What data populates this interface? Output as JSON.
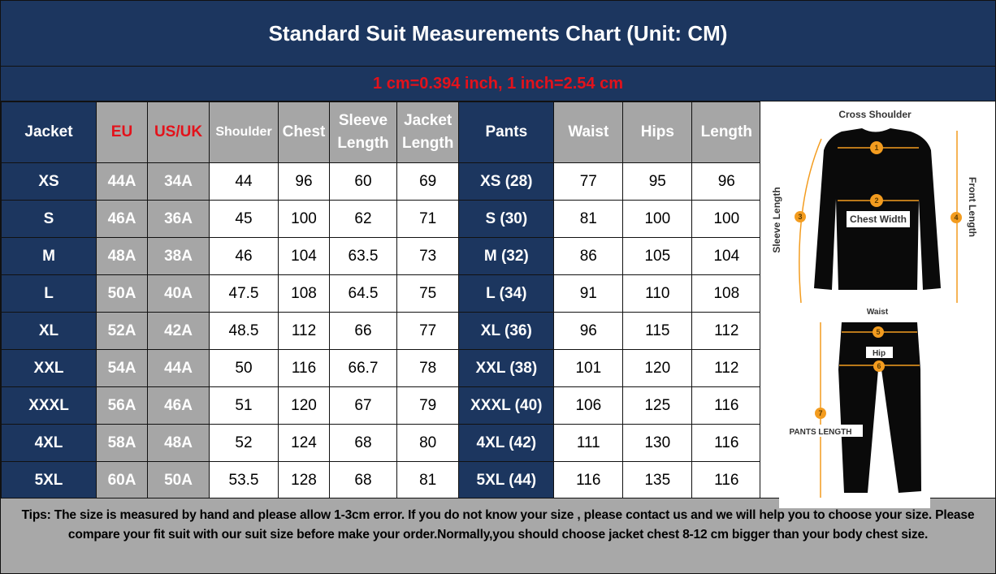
{
  "title": "Standard Suit Measurements Chart (Unit: CM)",
  "conversion": "1 cm=0.394 inch,  1 inch=2.54 cm",
  "colors": {
    "navy": "#1c365f",
    "grey": "#a6a6a6",
    "red": "#e3121b",
    "orange": "#f39c1f"
  },
  "headers": [
    "Jacket",
    "EU",
    "US/UK",
    "Shoulder",
    "Chest",
    "Sleeve Length",
    "Jacket Length",
    "Pants",
    "Waist",
    "Hips",
    "Length"
  ],
  "rows": [
    [
      "XS",
      "44A",
      "34A",
      "44",
      "96",
      "60",
      "69",
      "XS (28)",
      "77",
      "95",
      "96"
    ],
    [
      "S",
      "46A",
      "36A",
      "45",
      "100",
      "62",
      "71",
      "S (30)",
      "81",
      "100",
      "100"
    ],
    [
      "M",
      "48A",
      "38A",
      "46",
      "104",
      "63.5",
      "73",
      "M (32)",
      "86",
      "105",
      "104"
    ],
    [
      "L",
      "50A",
      "40A",
      "47.5",
      "108",
      "64.5",
      "75",
      "L (34)",
      "91",
      "110",
      "108"
    ],
    [
      "XL",
      "52A",
      "42A",
      "48.5",
      "112",
      "66",
      "77",
      "XL (36)",
      "96",
      "115",
      "112"
    ],
    [
      "XXL",
      "54A",
      "44A",
      "50",
      "116",
      "66.7",
      "78",
      "XXL (38)",
      "101",
      "120",
      "112"
    ],
    [
      "XXXL",
      "56A",
      "46A",
      "51",
      "120",
      "67",
      "79",
      "XXXL (40)",
      "106",
      "125",
      "116"
    ],
    [
      "4XL",
      "58A",
      "48A",
      "52",
      "124",
      "68",
      "80",
      "4XL (42)",
      "111",
      "130",
      "116"
    ],
    [
      "5XL",
      "60A",
      "50A",
      "53.5",
      "128",
      "68",
      "81",
      "5XL (44)",
      "116",
      "135",
      "116"
    ]
  ],
  "diagram": {
    "cross_shoulder": "Cross Shoulder",
    "chest_width": "Chest Width",
    "sleeve_length": "Sleeve Length",
    "front_length": "Front Length",
    "waist": "Waist",
    "hip": "Hip",
    "pants_length": "PANTS LENGTH",
    "markers": [
      "1",
      "2",
      "3",
      "4",
      "5",
      "6",
      "7"
    ]
  },
  "tips": "Tips: The size is measured by hand and please allow 1-3cm error. If you do not know your size , please contact us and we will help you to choose your size. Please compare your fit suit with our suit size before make your order.Normally,you should choose jacket chest 8-12 cm bigger than your body chest size."
}
